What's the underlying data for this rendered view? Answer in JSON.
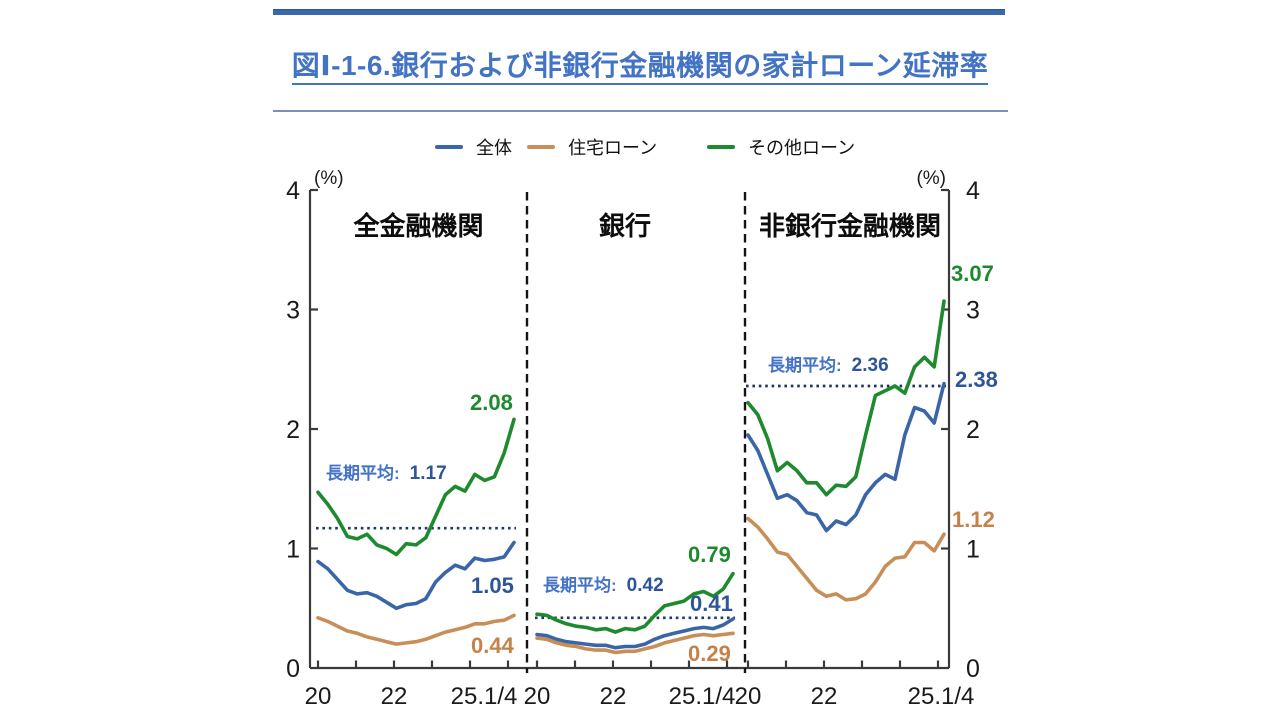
{
  "header": {
    "title": "図Ⅰ-1-6.銀行および非銀行金融機関の家計ローン延滞率"
  },
  "legend": {
    "items": [
      {
        "label": "全体",
        "key": "total",
        "color": "#3A66A8"
      },
      {
        "label": "住宅ローン",
        "key": "housing",
        "color": "#C98E58"
      },
      {
        "label": "その他ローン",
        "key": "other",
        "color": "#1E8A2E"
      }
    ]
  },
  "chart_data": {
    "type": "line",
    "title": "図Ⅰ-1-6.銀行および非銀行金融機関の家計ローン延滞率",
    "unit_label": "(%)",
    "ylim": [
      0,
      4
    ],
    "grid": false,
    "legend_position": "top",
    "y_tick_labels": [
      "4",
      "3",
      "2",
      "1",
      "0"
    ],
    "x_tick_labels": [
      "20",
      "22",
      "25.1/4"
    ],
    "avg_line_label": "長期平均:",
    "colors": {
      "total": "#3A66A8",
      "housing": "#C98E58",
      "other": "#1E8A2E",
      "avg_line": "#1F3864"
    },
    "panels": [
      {
        "title": "全金融機関",
        "long_term_avg": "1.17",
        "series": [
          {
            "name": "全体",
            "key": "total",
            "end_label": "1.05",
            "values": [
              0.89,
              0.83,
              0.74,
              0.65,
              0.62,
              0.63,
              0.6,
              0.55,
              0.5,
              0.53,
              0.54,
              0.58,
              0.72,
              0.8,
              0.86,
              0.83,
              0.92,
              0.9,
              0.91,
              0.93,
              1.05
            ]
          },
          {
            "name": "住宅ローン",
            "key": "housing",
            "end_label": "0.44",
            "values": [
              0.42,
              0.39,
              0.35,
              0.31,
              0.29,
              0.26,
              0.24,
              0.22,
              0.2,
              0.21,
              0.22,
              0.24,
              0.27,
              0.3,
              0.32,
              0.34,
              0.37,
              0.37,
              0.39,
              0.4,
              0.44
            ]
          },
          {
            "name": "その他ローン",
            "key": "other",
            "end_label": "2.08",
            "values": [
              1.47,
              1.37,
              1.25,
              1.1,
              1.08,
              1.12,
              1.03,
              1.0,
              0.95,
              1.04,
              1.03,
              1.09,
              1.27,
              1.45,
              1.52,
              1.48,
              1.62,
              1.57,
              1.6,
              1.8,
              2.08
            ]
          }
        ]
      },
      {
        "title": "銀行",
        "long_term_avg": "0.42",
        "series": [
          {
            "name": "全体",
            "key": "total",
            "end_label": "0.41",
            "values": [
              0.28,
              0.27,
              0.24,
              0.22,
              0.21,
              0.2,
              0.19,
              0.19,
              0.17,
              0.18,
              0.18,
              0.2,
              0.24,
              0.27,
              0.29,
              0.31,
              0.33,
              0.34,
              0.33,
              0.36,
              0.41
            ]
          },
          {
            "name": "住宅ローン",
            "key": "housing",
            "end_label": "0.29",
            "values": [
              0.25,
              0.24,
              0.21,
              0.19,
              0.18,
              0.16,
              0.15,
              0.15,
              0.13,
              0.14,
              0.14,
              0.16,
              0.18,
              0.21,
              0.23,
              0.25,
              0.27,
              0.28,
              0.27,
              0.28,
              0.29
            ]
          },
          {
            "name": "その他ローン",
            "key": "other",
            "end_label": "0.79",
            "values": [
              0.45,
              0.44,
              0.4,
              0.37,
              0.35,
              0.34,
              0.32,
              0.33,
              0.3,
              0.33,
              0.32,
              0.35,
              0.44,
              0.52,
              0.54,
              0.56,
              0.62,
              0.64,
              0.6,
              0.66,
              0.79
            ]
          }
        ]
      },
      {
        "title": "非銀行金融機関",
        "long_term_avg": "2.36",
        "series": [
          {
            "name": "全体",
            "key": "total",
            "end_label": "2.38",
            "values": [
              1.95,
              1.82,
              1.62,
              1.42,
              1.45,
              1.4,
              1.3,
              1.28,
              1.15,
              1.23,
              1.2,
              1.28,
              1.45,
              1.55,
              1.62,
              1.58,
              1.95,
              2.18,
              2.15,
              2.05,
              2.38
            ]
          },
          {
            "name": "住宅ローン",
            "key": "housing",
            "end_label": "1.12",
            "values": [
              1.25,
              1.18,
              1.08,
              0.97,
              0.95,
              0.85,
              0.75,
              0.65,
              0.6,
              0.62,
              0.57,
              0.58,
              0.62,
              0.72,
              0.85,
              0.92,
              0.93,
              1.05,
              1.05,
              0.98,
              1.12
            ]
          },
          {
            "name": "その他ローン",
            "key": "other",
            "end_label": "3.07",
            "values": [
              2.22,
              2.12,
              1.92,
              1.65,
              1.72,
              1.65,
              1.55,
              1.55,
              1.45,
              1.53,
              1.52,
              1.6,
              1.95,
              2.28,
              2.32,
              2.36,
              2.3,
              2.52,
              2.6,
              2.52,
              3.07
            ]
          }
        ]
      }
    ]
  }
}
